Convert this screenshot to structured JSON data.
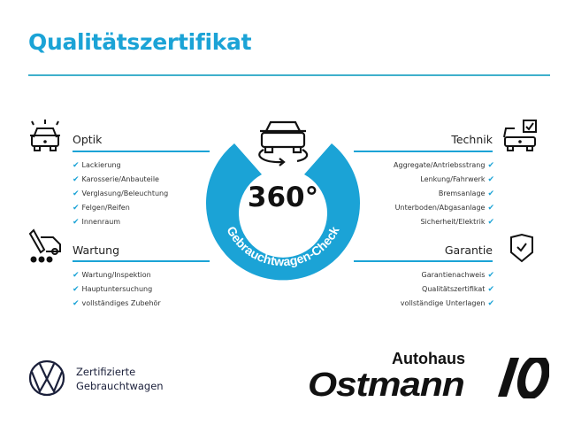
{
  "title": "Qualitätszertifikat",
  "accent_color": "#1ba3d6",
  "badge": {
    "value": "360°",
    "ring_text": "Gebrauchtwagen-Check",
    "icon": "car-rotate-icon"
  },
  "sections": {
    "optik": {
      "heading": "Optik",
      "icon": "car-lights-icon",
      "items": [
        "Lackierung",
        "Karosserie/Anbauteile",
        "Verglasung/Beleuchtung",
        "Felgen/Reifen",
        "Innenraum"
      ]
    },
    "wartung": {
      "heading": "Wartung",
      "icon": "tools-van-icon",
      "items": [
        "Wartung/Inspektion",
        "Hauptuntersuchung",
        "vollständiges Zubehör"
      ]
    },
    "technik": {
      "heading": "Technik",
      "icon": "car-checklist-icon",
      "items": [
        "Aggregate/Antriebsstrang",
        "Lenkung/Fahrwerk",
        "Bremsanlage",
        "Unterboden/Abgasanlage",
        "Sicherheit/Elektrik"
      ]
    },
    "garantie": {
      "heading": "Garantie",
      "icon": "shield-check-icon",
      "items": [
        "Garantienachweis",
        "Qualitätszertifikat",
        "vollständige Unterlagen"
      ]
    }
  },
  "check_mark": "✔",
  "footer": {
    "vw_line1": "Zertifizierte",
    "vw_line2": "Gebrauchtwagen",
    "dealer_small": "Autohaus",
    "dealer_big": "Ostmann"
  }
}
